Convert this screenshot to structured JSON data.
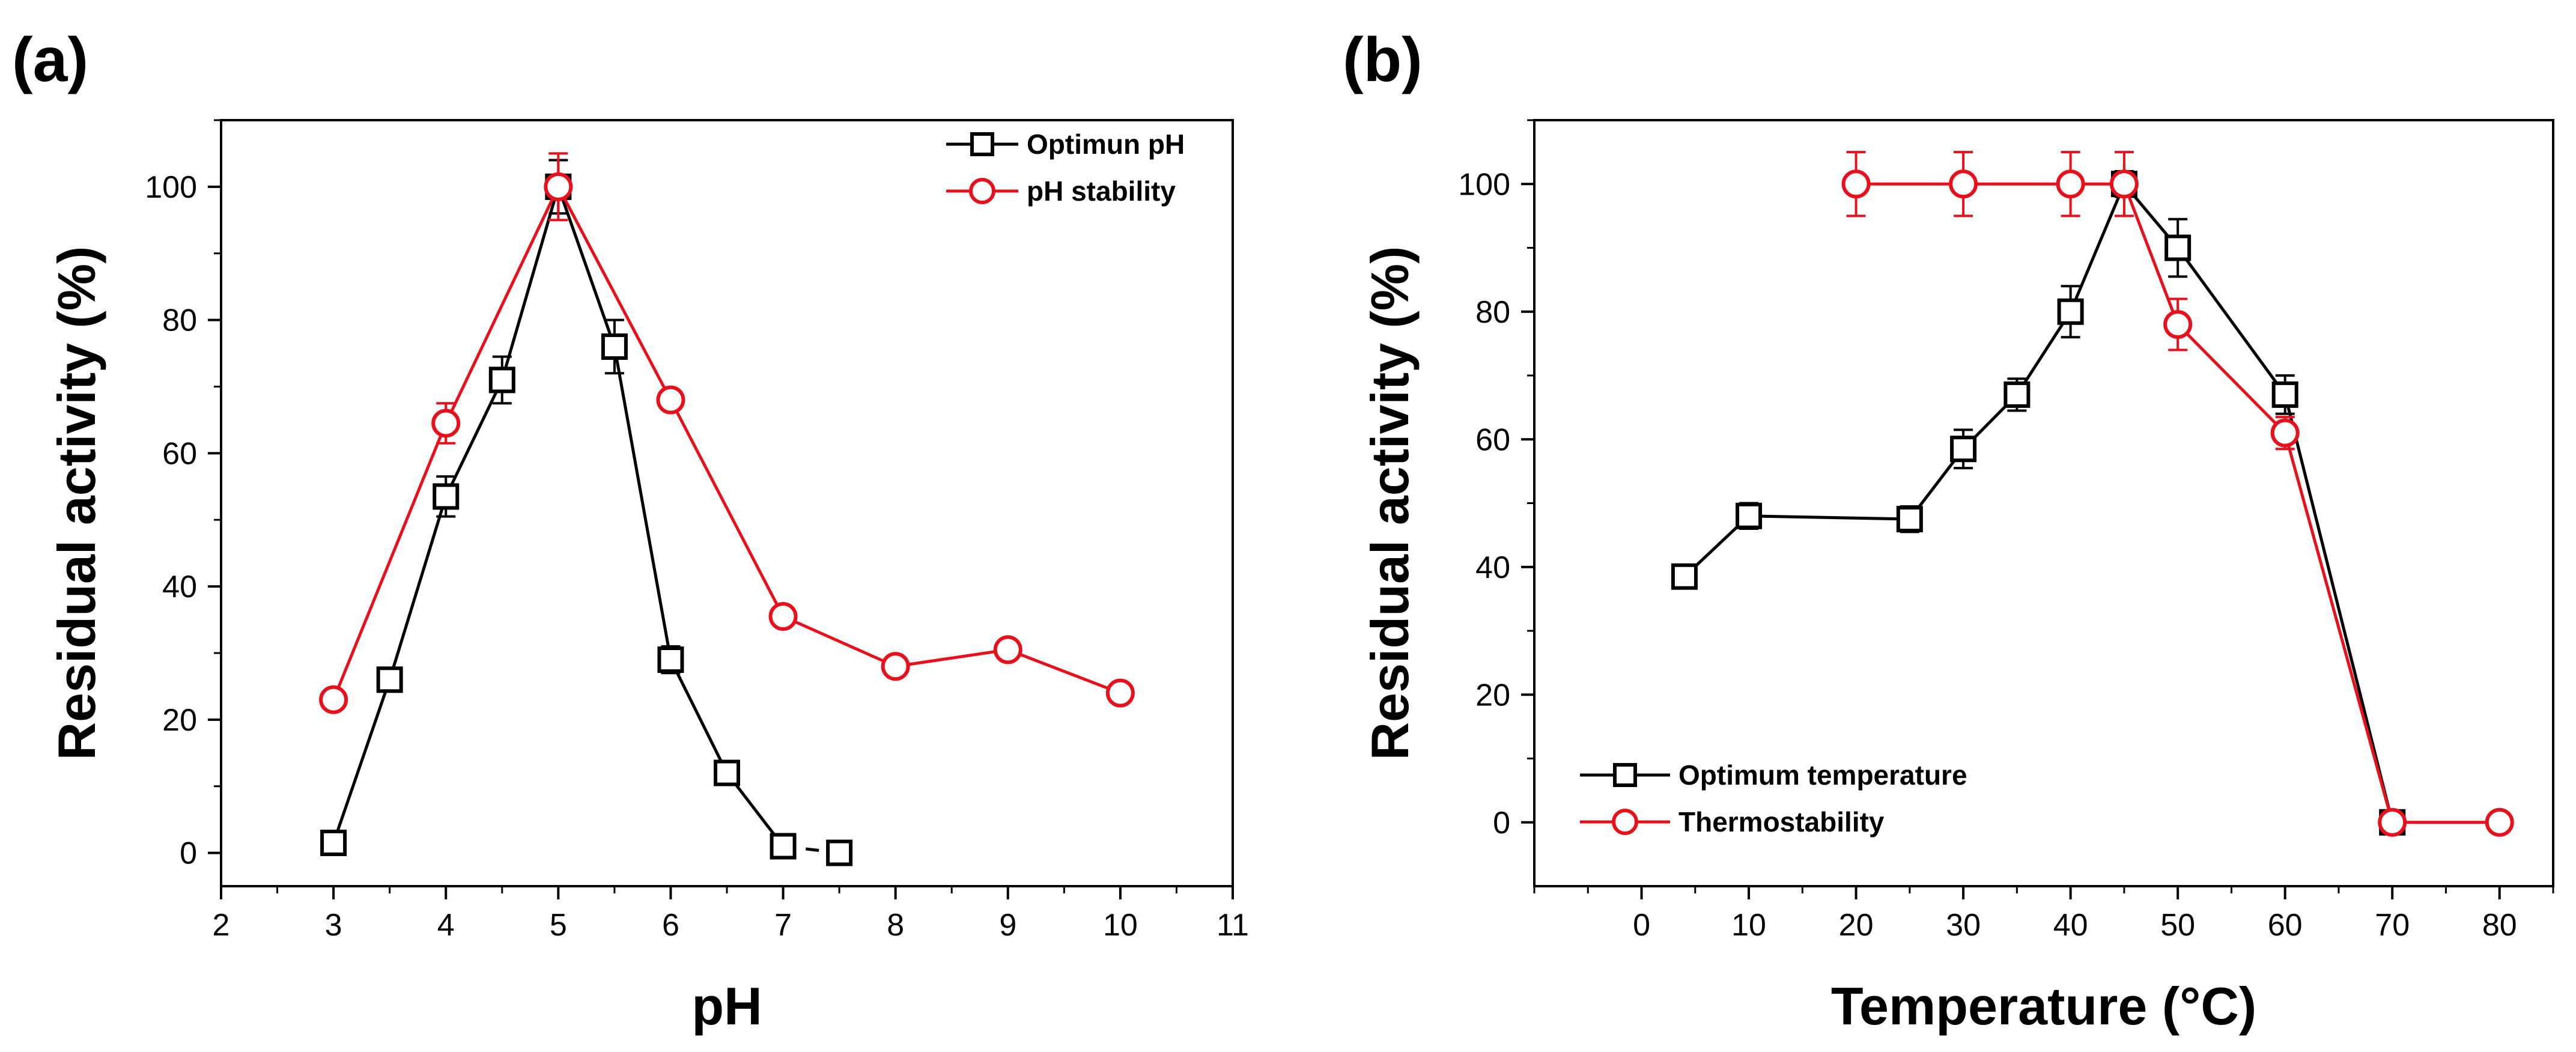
{
  "colors": {
    "black_series": "#000000",
    "red_series": "#e8101a"
  },
  "chart_data": [
    {
      "panel": "(a)",
      "type": "line",
      "xlabel": "pH",
      "ylabel": "Residual activity (%)",
      "xlim": [
        2,
        11
      ],
      "ylim": [
        -5,
        110
      ],
      "xticks": [
        2,
        3,
        4,
        5,
        6,
        7,
        8,
        9,
        10,
        11
      ],
      "yticks": [
        0,
        20,
        40,
        60,
        80,
        100
      ],
      "legend_position": "top-right",
      "series": [
        {
          "name": "Optimun pH",
          "color": "#000000",
          "marker": "square",
          "x": [
            3,
            3.5,
            4,
            4.5,
            5,
            5.5,
            6,
            6.5,
            7,
            7.5
          ],
          "y": [
            1.5,
            26,
            53.5,
            71,
            100,
            76,
            29,
            12,
            1,
            0
          ],
          "err": [
            1.5,
            1.5,
            3,
            3.5,
            4,
            4,
            2,
            1.5,
            1,
            0
          ],
          "dashed_last_segment": true
        },
        {
          "name": "pH stability",
          "color": "#e8101a",
          "marker": "circle",
          "x": [
            3,
            4,
            5,
            6,
            7,
            8,
            9,
            10
          ],
          "y": [
            23,
            64.5,
            100,
            68,
            35.5,
            28,
            30.5,
            24
          ],
          "err": [
            1,
            3,
            5,
            1.5,
            1,
            1,
            1,
            1
          ]
        }
      ]
    },
    {
      "panel": "(b)",
      "type": "line",
      "xlabel": "Temperature (°C)",
      "ylabel": "Residual activity (%)",
      "xlim": [
        -10,
        85
      ],
      "ylim": [
        -10,
        110
      ],
      "xticks": [
        0,
        10,
        20,
        30,
        40,
        50,
        60,
        70,
        80
      ],
      "yticks": [
        0,
        20,
        40,
        60,
        80,
        100
      ],
      "legend_position": "bottom-left",
      "series": [
        {
          "name": "Optimum temperature",
          "color": "#000000",
          "marker": "square",
          "x": [
            4,
            10,
            25,
            30,
            35,
            40,
            45,
            50,
            60,
            70
          ],
          "y": [
            38.5,
            48,
            47.5,
            58.5,
            67,
            80,
            100,
            90,
            67,
            0
          ],
          "err": [
            1.5,
            2,
            2,
            3,
            2.5,
            4,
            2,
            4.5,
            3,
            0
          ]
        },
        {
          "name": "Thermostability",
          "color": "#e8101a",
          "marker": "circle",
          "x": [
            20,
            30,
            40,
            45,
            50,
            60,
            70,
            80
          ],
          "y": [
            100,
            100,
            100,
            100,
            78,
            61,
            0,
            0
          ],
          "err": [
            5,
            5,
            5,
            5,
            4,
            2.5,
            0,
            0
          ]
        }
      ]
    }
  ]
}
